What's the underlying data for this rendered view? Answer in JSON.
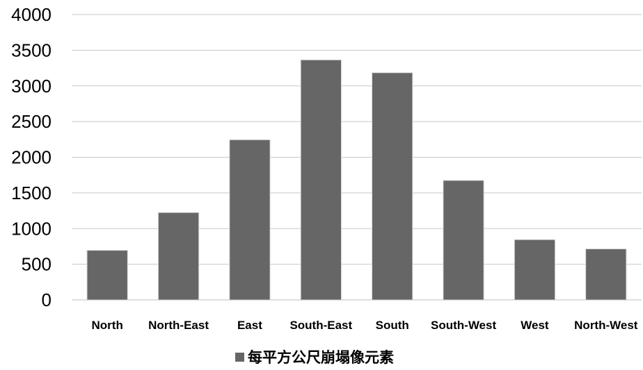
{
  "chart_data": {
    "type": "bar",
    "title": "",
    "xlabel": "",
    "ylabel": "",
    "categories": [
      "North",
      "North-East",
      "East",
      "South-East",
      "South",
      "South-West",
      "West",
      "North-West"
    ],
    "series": [
      {
        "name": "每平方公尺崩塌像元素",
        "values": [
          690,
          1220,
          2240,
          3360,
          3180,
          1670,
          840,
          710
        ],
        "color": "#666666"
      }
    ],
    "ylim": [
      0,
      4000
    ],
    "yticks": [
      0,
      500,
      1000,
      1500,
      2000,
      2500,
      3000,
      3500,
      4000
    ],
    "grid": true,
    "legend": "bottom-center"
  }
}
